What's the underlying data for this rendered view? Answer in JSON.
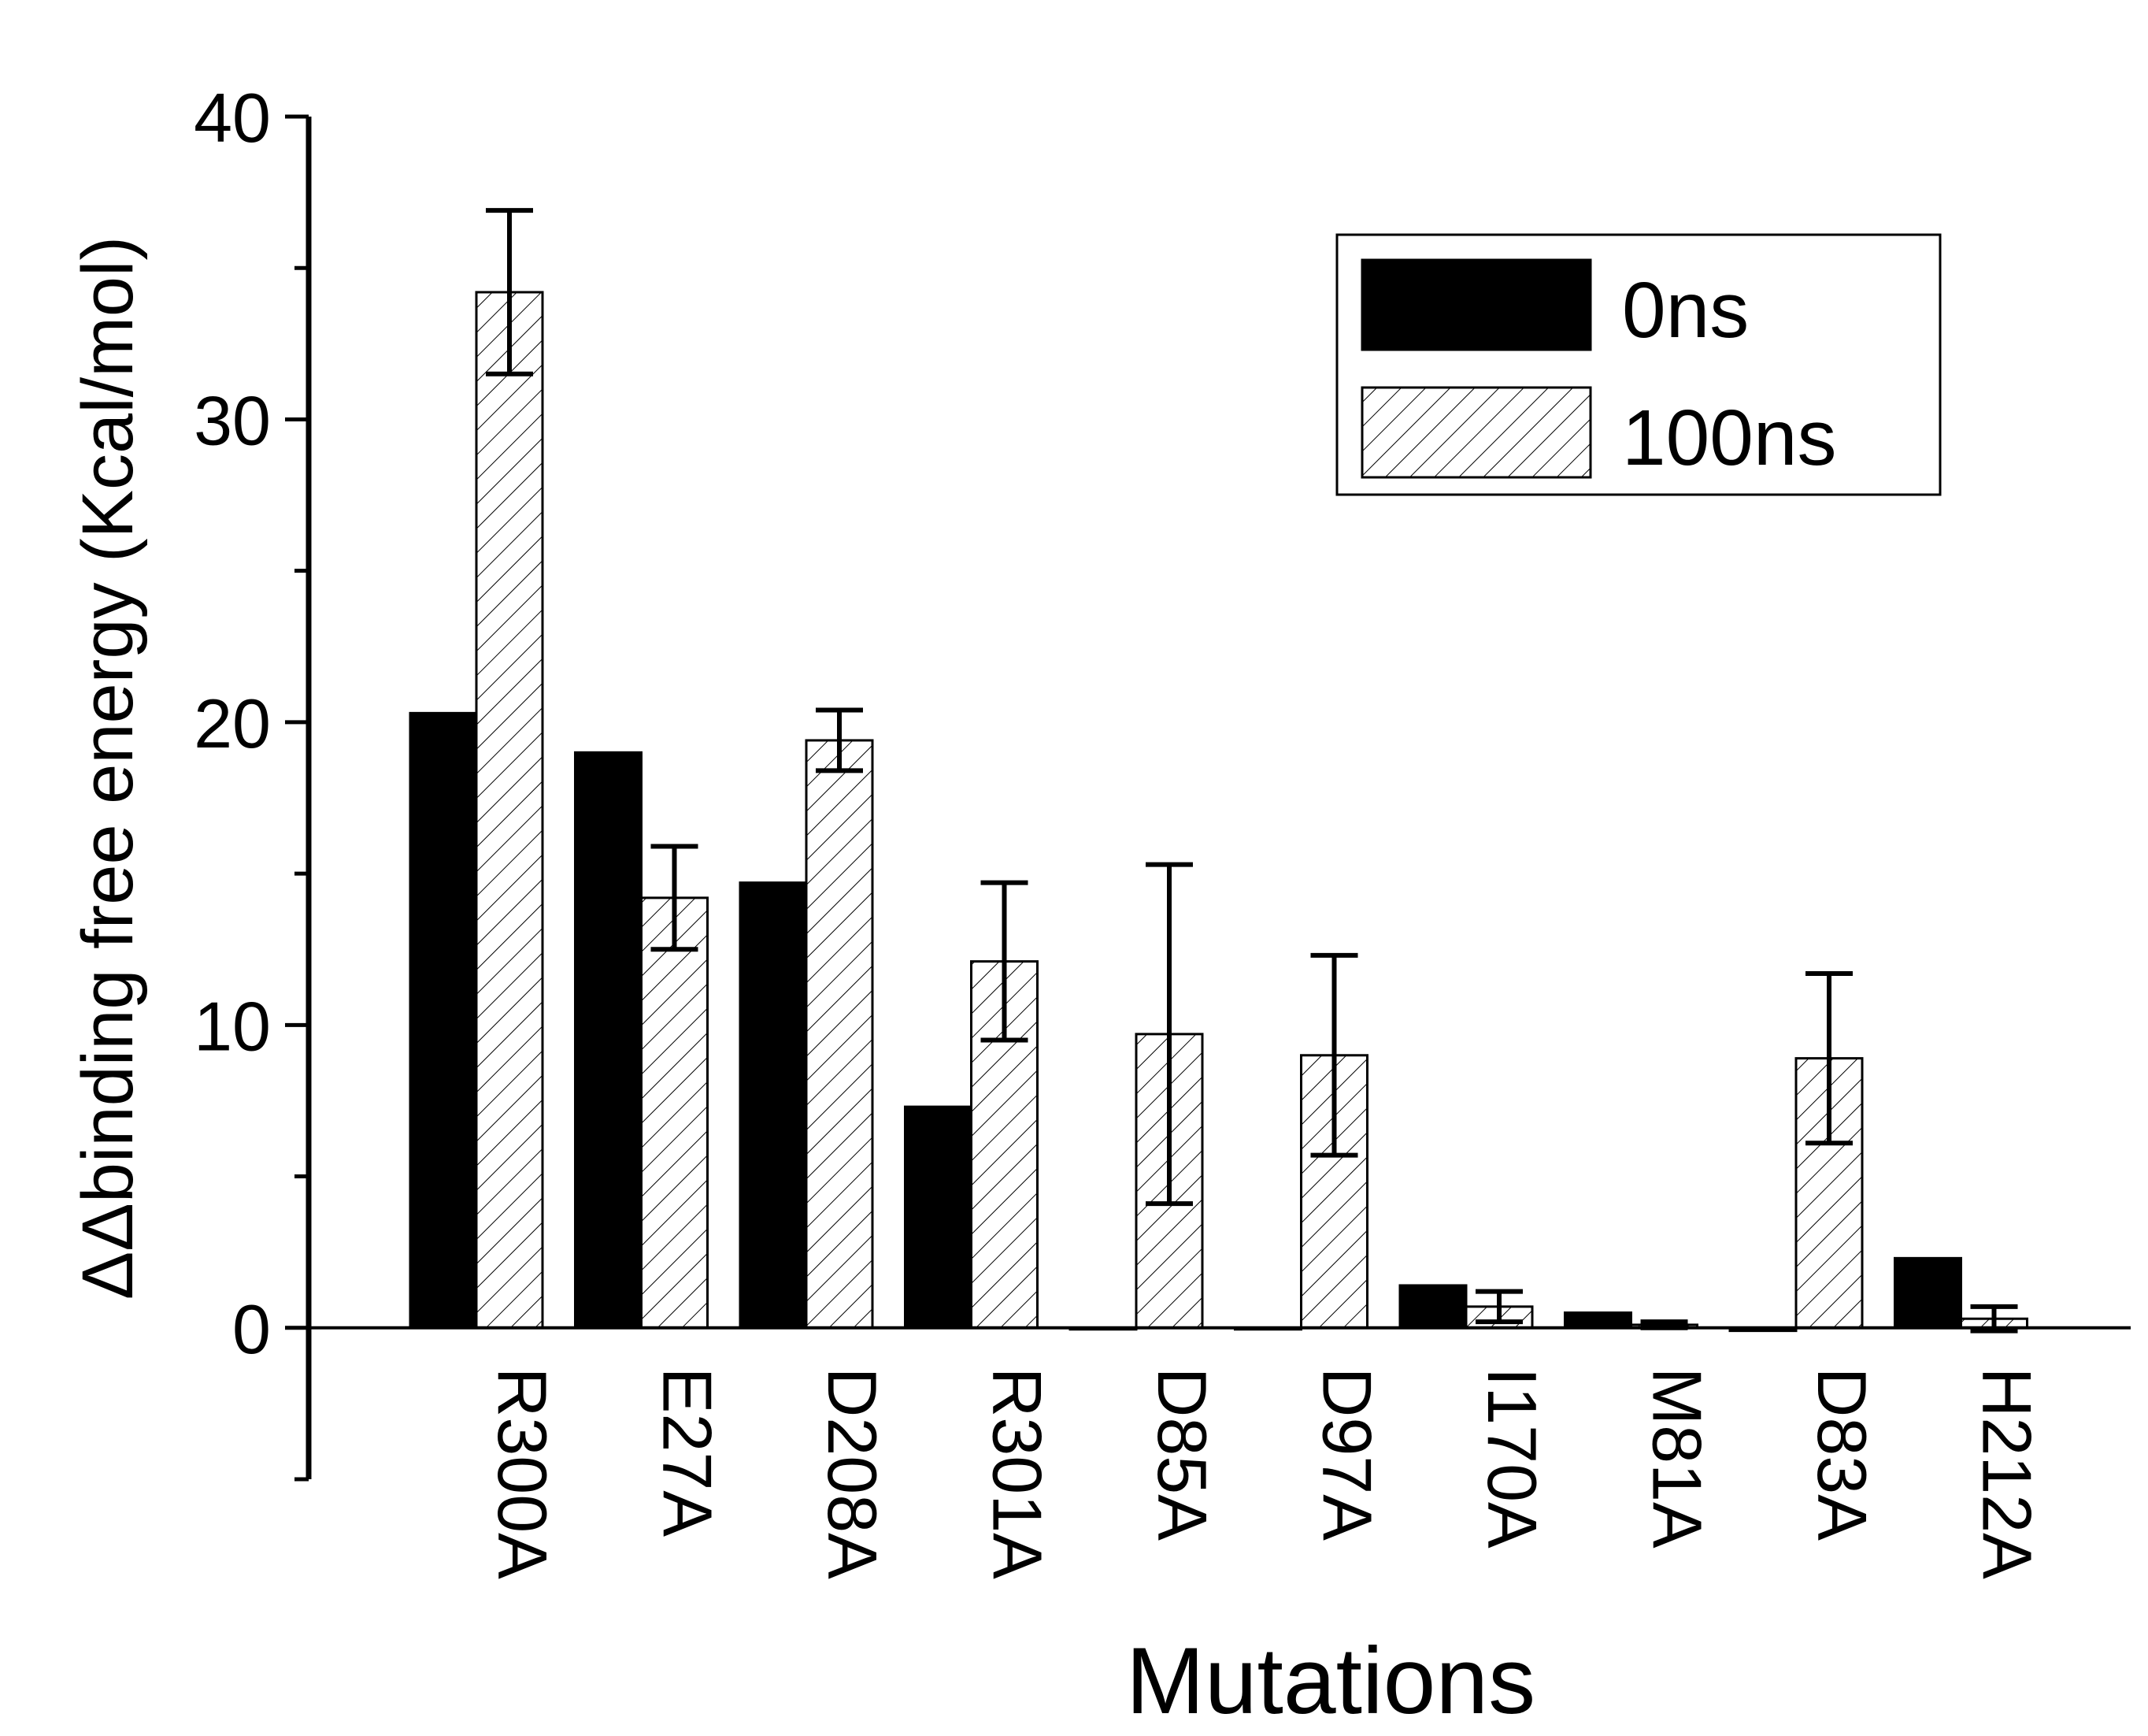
{
  "chart_data": {
    "type": "bar",
    "title": "",
    "xlabel": "Mutations",
    "ylabel": "ΔΔbinding free energy (Kcal/mol)",
    "ylim": [
      -5,
      40
    ],
    "yticks": [
      0,
      10,
      20,
      30,
      40
    ],
    "categories": [
      "R300A",
      "E27A",
      "D208A",
      "R301A",
      "D85A",
      "D97A",
      "I170A",
      "M81A",
      "D83A",
      "H212A"
    ],
    "series": [
      {
        "name": "0ns",
        "fill": "solid",
        "color": "#000000",
        "values": [
          20.3,
          19.0,
          14.7,
          7.3,
          0.0,
          0.0,
          1.4,
          0.5,
          -0.1,
          2.3
        ]
      },
      {
        "name": "100ns",
        "fill": "hatched",
        "color": "#000000",
        "values": [
          34.2,
          14.2,
          19.4,
          12.1,
          9.7,
          9.0,
          0.7,
          0.1,
          8.9,
          0.3
        ],
        "errors": [
          2.7,
          1.7,
          1.0,
          2.6,
          5.6,
          3.3,
          0.5,
          0.1,
          2.8,
          0.4
        ]
      }
    ],
    "legend": {
      "position": "top-right",
      "entries": [
        "0ns",
        "100ns"
      ]
    }
  }
}
